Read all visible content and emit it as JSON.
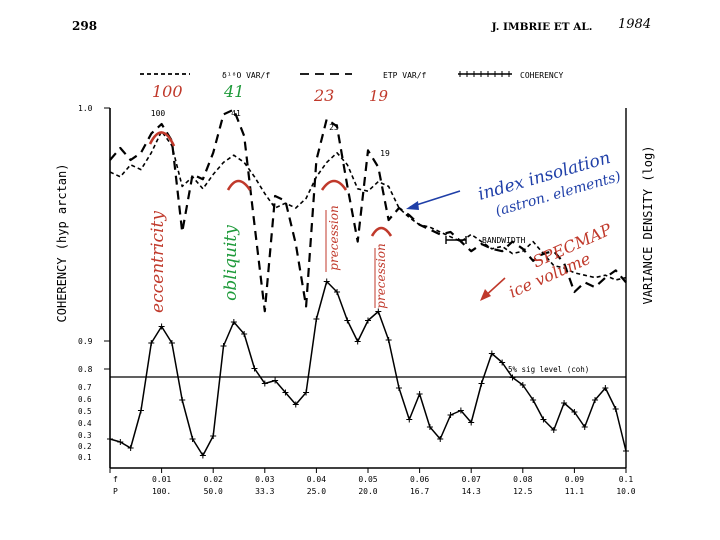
{
  "header": {
    "page_number": "298",
    "running_head": "J. IMBRIE ET AL.",
    "year_note": "1984"
  },
  "legend": {
    "entries": [
      {
        "label": "δ¹⁸O VAR/f",
        "style": "short-dash"
      },
      {
        "label": "ETP VAR/f",
        "style": "long-dash"
      },
      {
        "label": "COHERENCY",
        "style": "line-with-crosses"
      }
    ]
  },
  "handwritten": {
    "period_labels": [
      {
        "text": "100",
        "color": "#c0392b"
      },
      {
        "text": "41",
        "color": "#1e9a3a"
      },
      {
        "text": "23",
        "color": "#c0392b"
      },
      {
        "text": "19",
        "color": "#c0392b"
      }
    ],
    "vertical_labels": [
      {
        "text": "eccentricity",
        "color": "#c0392b"
      },
      {
        "text": "obliquity",
        "color": "#1e9a3a"
      },
      {
        "text": "precession",
        "color": "#c0392b"
      },
      {
        "text": "precession",
        "color": "#c0392b"
      }
    ],
    "insolation_note": {
      "line1": "index insolation",
      "line2": "(astron. elements)",
      "color": "#1f3fa8"
    },
    "ice_note": {
      "line1": "ice volume",
      "line2": "SPECMAP",
      "color": "#c0392b"
    }
  },
  "chart_data": {
    "type": "line",
    "x_axis": {
      "f_ticks": [
        "0",
        "0.01",
        "0.02",
        "0.03",
        "0.04",
        "0.05",
        "0.06",
        "0.07",
        "0.08",
        "0.09",
        "0.1"
      ],
      "p_ticks": [
        "",
        "100.",
        "50.0",
        "33.3",
        "25.0",
        "20.0",
        "16.7",
        "14.3",
        "12.5",
        "11.1",
        "10.0"
      ],
      "f_label": "f",
      "p_label": "P",
      "range": [
        0,
        0.1
      ]
    },
    "left_axis": {
      "label": "COHERENCY (hyp arctan)",
      "upper_ticks": [
        "1.0",
        "0.9",
        "0.8"
      ],
      "lower_ticks": [
        "0.7",
        "0.6",
        "0.5",
        "0.4",
        "0.3",
        "0.2",
        "0.1"
      ]
    },
    "right_axis": {
      "label": "VARIANCE DENSITY (log)"
    },
    "peak_labels": [
      "100",
      "41",
      "23",
      "19"
    ],
    "bandwidth_label": "BANDWIDTH",
    "significance_label": "5% sig level (coh)",
    "series": [
      {
        "name": "δ¹⁸O VAR/f",
        "style": "short-dash",
        "x": [
          0.0,
          0.002,
          0.004,
          0.006,
          0.008,
          0.01,
          0.012,
          0.014,
          0.016,
          0.018,
          0.02,
          0.022,
          0.024,
          0.026,
          0.028,
          0.03,
          0.032,
          0.034,
          0.036,
          0.038,
          0.04,
          0.042,
          0.044,
          0.046,
          0.048,
          0.05,
          0.052,
          0.054,
          0.056,
          0.058,
          0.06,
          0.062,
          0.064,
          0.066,
          0.068,
          0.07,
          0.072,
          0.074,
          0.076,
          0.078,
          0.08,
          0.082,
          0.084,
          0.086,
          0.088,
          0.09,
          0.092,
          0.094,
          0.096,
          0.098,
          0.1
        ],
        "y": [
          0.7,
          0.68,
          0.73,
          0.71,
          0.78,
          0.87,
          0.81,
          0.64,
          0.68,
          0.63,
          0.69,
          0.74,
          0.77,
          0.74,
          0.68,
          0.61,
          0.55,
          0.57,
          0.55,
          0.59,
          0.68,
          0.74,
          0.78,
          0.73,
          0.63,
          0.62,
          0.66,
          0.64,
          0.55,
          0.51,
          0.48,
          0.47,
          0.45,
          0.43,
          0.41,
          0.44,
          0.41,
          0.38,
          0.39,
          0.36,
          0.37,
          0.41,
          0.36,
          0.31,
          0.3,
          0.28,
          0.27,
          0.26,
          0.27,
          0.25,
          0.26
        ]
      },
      {
        "name": "ETP VAR/f",
        "style": "long-dash",
        "x": [
          0.0,
          0.002,
          0.004,
          0.006,
          0.008,
          0.01,
          0.012,
          0.014,
          0.016,
          0.018,
          0.02,
          0.022,
          0.024,
          0.026,
          0.028,
          0.03,
          0.032,
          0.034,
          0.036,
          0.038,
          0.04,
          0.042,
          0.044,
          0.046,
          0.048,
          0.05,
          0.052,
          0.054,
          0.056,
          0.058,
          0.06,
          0.062,
          0.064,
          0.066,
          0.068,
          0.07,
          0.072,
          0.074,
          0.076,
          0.078,
          0.08,
          0.082,
          0.084,
          0.086,
          0.088,
          0.09,
          0.092,
          0.094,
          0.096,
          0.098,
          0.1
        ],
        "y": [
          0.75,
          0.8,
          0.75,
          0.78,
          0.86,
          0.9,
          0.83,
          0.45,
          0.69,
          0.67,
          0.78,
          0.94,
          0.96,
          0.85,
          0.48,
          0.12,
          0.6,
          0.58,
          0.4,
          0.14,
          0.75,
          0.92,
          0.89,
          0.64,
          0.41,
          0.79,
          0.72,
          0.5,
          0.55,
          0.52,
          0.48,
          0.46,
          0.44,
          0.45,
          0.41,
          0.37,
          0.4,
          0.38,
          0.37,
          0.41,
          0.38,
          0.33,
          0.36,
          0.37,
          0.32,
          0.2,
          0.24,
          0.22,
          0.26,
          0.29,
          0.24
        ]
      },
      {
        "name": "COHERENCY",
        "style": "line-with-crosses",
        "x": [
          0.0,
          0.002,
          0.004,
          0.006,
          0.008,
          0.01,
          0.012,
          0.014,
          0.016,
          0.018,
          0.02,
          0.022,
          0.024,
          0.026,
          0.028,
          0.03,
          0.032,
          0.034,
          0.036,
          0.038,
          0.04,
          0.042,
          0.044,
          0.046,
          0.048,
          0.05,
          0.052,
          0.054,
          0.056,
          0.058,
          0.06,
          0.062,
          0.064,
          0.066,
          0.068,
          0.07,
          0.072,
          0.074,
          0.076,
          0.078,
          0.08,
          0.082,
          0.084,
          0.086,
          0.088,
          0.09,
          0.092,
          0.094,
          0.096,
          0.098,
          0.1
        ],
        "y": [
          0.18,
          0.16,
          0.12,
          0.37,
          0.82,
          0.93,
          0.82,
          0.44,
          0.18,
          0.07,
          0.2,
          0.8,
          0.96,
          0.88,
          0.65,
          0.55,
          0.57,
          0.49,
          0.41,
          0.49,
          0.98,
          1.23,
          1.16,
          0.97,
          0.83,
          0.97,
          1.03,
          0.84,
          0.52,
          0.31,
          0.48,
          0.26,
          0.18,
          0.34,
          0.37,
          0.29,
          0.55,
          0.75,
          0.69,
          0.59,
          0.54,
          0.44,
          0.31,
          0.24,
          0.42,
          0.36,
          0.26,
          0.44,
          0.52,
          0.38,
          0.1
        ]
      }
    ]
  }
}
